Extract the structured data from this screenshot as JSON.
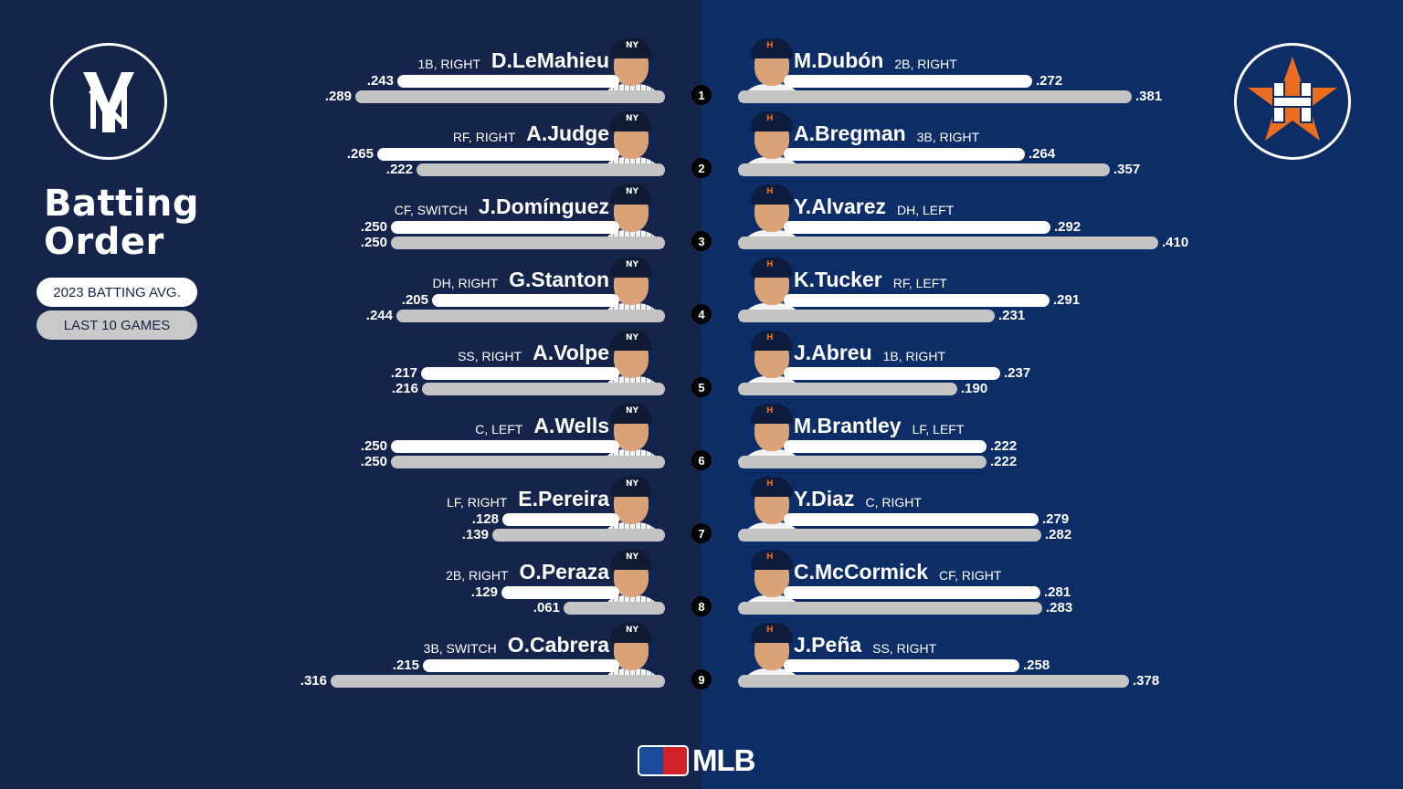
{
  "title": "Batting Order",
  "legend": {
    "season": "2023 BATTING AVG.",
    "recent": "LAST 10 GAMES"
  },
  "teams": {
    "away": {
      "logo_icon": "yankees-logo-icon",
      "color": "#15244a"
    },
    "home": {
      "logo_icon": "astros-logo-icon",
      "color": "#0d2d66",
      "accent": "#eb6e1f"
    }
  },
  "brand": "MLB",
  "chart_data": {
    "type": "bar",
    "orders": [
      "1",
      "2",
      "3",
      "4",
      "5",
      "6",
      "7",
      "8",
      "9"
    ],
    "series_labels": [
      "2023 BATTING AVG.",
      "LAST 10 GAMES"
    ],
    "xlim": [
      0,
      0.5
    ],
    "away": [
      {
        "name": "D.LeMahieu",
        "pos": "1B, RIGHT",
        "avg": ".243",
        "last10": ".289"
      },
      {
        "name": "A.Judge",
        "pos": "RF, RIGHT",
        "avg": ".265",
        "last10": ".222"
      },
      {
        "name": "J.Domínguez",
        "pos": "CF, SWITCH",
        "avg": ".250",
        "last10": ".250"
      },
      {
        "name": "G.Stanton",
        "pos": "DH, RIGHT",
        "avg": ".205",
        "last10": ".244"
      },
      {
        "name": "A.Volpe",
        "pos": "SS, RIGHT",
        "avg": ".217",
        "last10": ".216"
      },
      {
        "name": "A.Wells",
        "pos": "C, LEFT",
        "avg": ".250",
        "last10": ".250"
      },
      {
        "name": "E.Pereira",
        "pos": "LF, RIGHT",
        "avg": ".128",
        "last10": ".139"
      },
      {
        "name": "O.Peraza",
        "pos": "2B, RIGHT",
        "avg": ".129",
        "last10": ".061"
      },
      {
        "name": "O.Cabrera",
        "pos": "3B, SWITCH",
        "avg": ".215",
        "last10": ".316"
      }
    ],
    "home": [
      {
        "name": "M.Dubón",
        "pos": "2B, RIGHT",
        "avg": ".272",
        "last10": ".381"
      },
      {
        "name": "A.Bregman",
        "pos": "3B, RIGHT",
        "avg": ".264",
        "last10": ".357"
      },
      {
        "name": "Y.Alvarez",
        "pos": "DH, LEFT",
        "avg": ".292",
        "last10": ".410"
      },
      {
        "name": "K.Tucker",
        "pos": "RF, LEFT",
        "avg": ".291",
        "last10": ".231"
      },
      {
        "name": "J.Abreu",
        "pos": "1B, RIGHT",
        "avg": ".237",
        "last10": ".190"
      },
      {
        "name": "M.Brantley",
        "pos": "LF, LEFT",
        "avg": ".222",
        "last10": ".222"
      },
      {
        "name": "Y.Diaz",
        "pos": "C, RIGHT",
        "avg": ".279",
        "last10": ".282"
      },
      {
        "name": "C.McCormick",
        "pos": "CF, RIGHT",
        "avg": ".281",
        "last10": ".283"
      },
      {
        "name": "J.Peña",
        "pos": "SS, RIGHT",
        "avg": ".258",
        "last10": ".378"
      }
    ]
  }
}
